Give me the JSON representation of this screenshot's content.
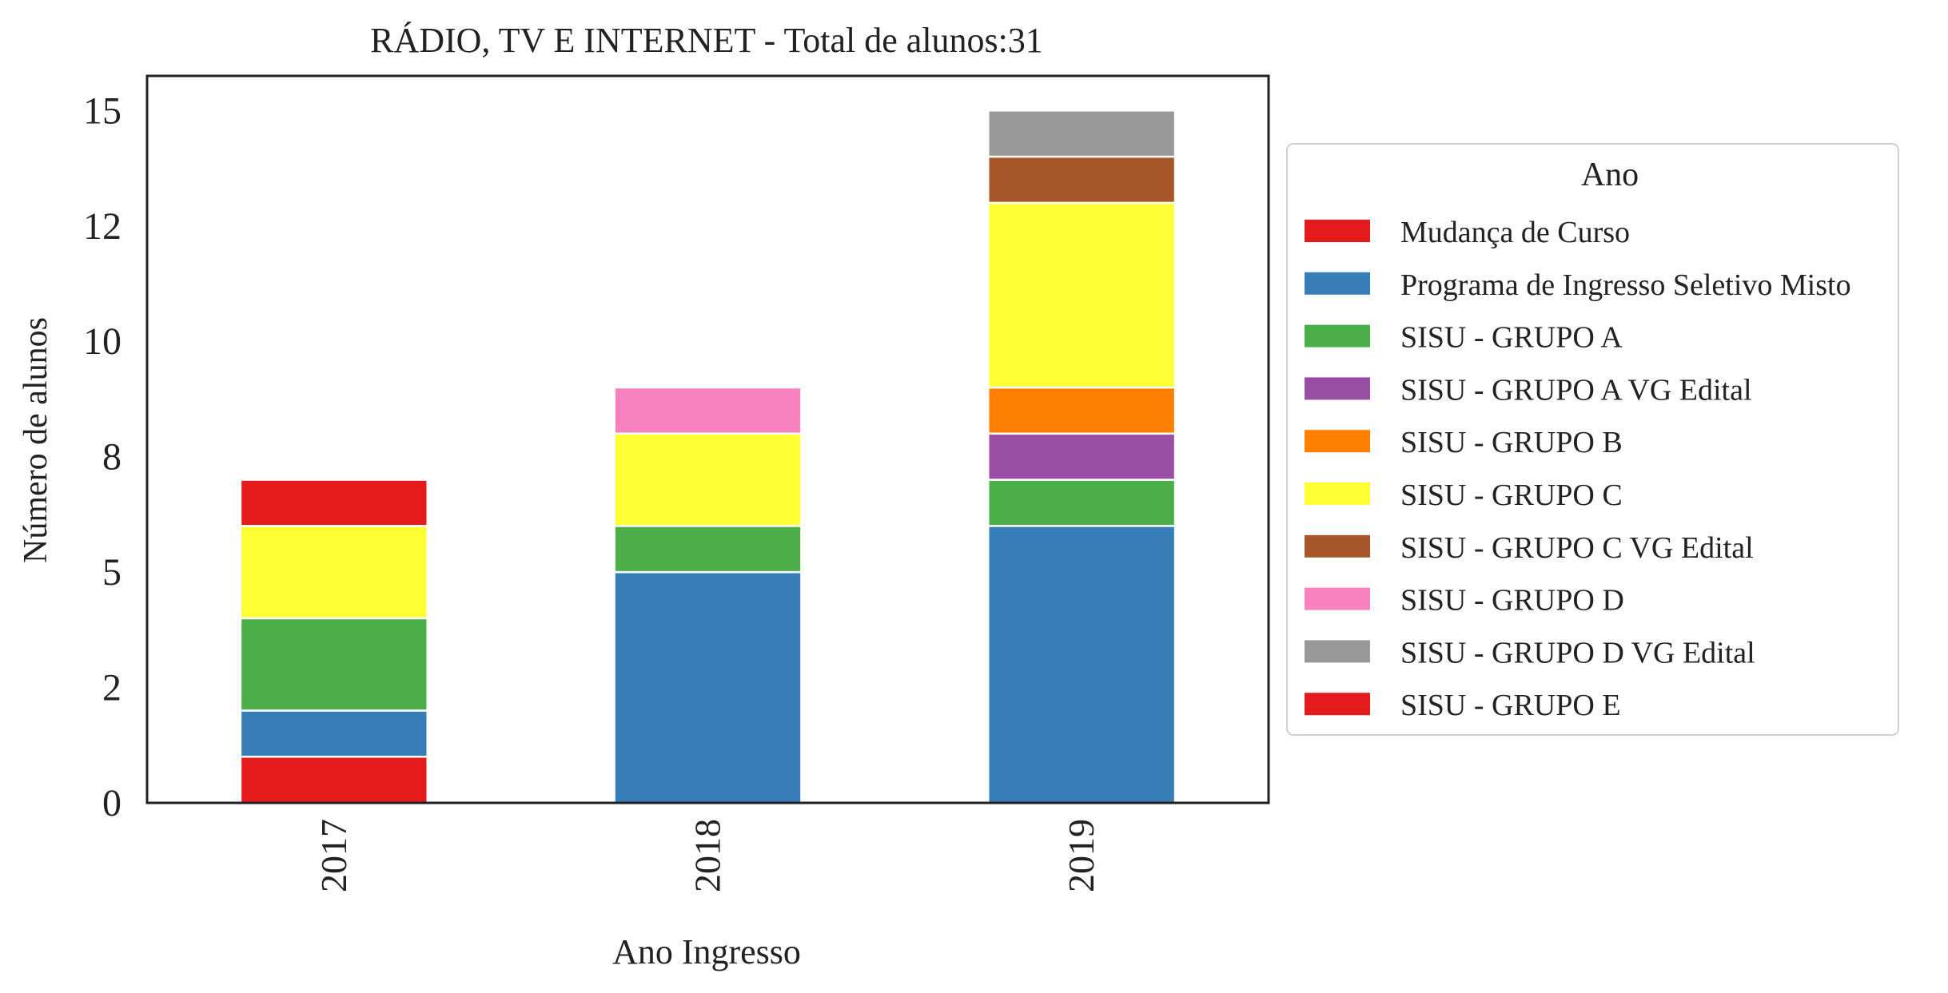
{
  "chart_data": {
    "type": "bar",
    "stacked": true,
    "title": "RÁDIO, TV E INTERNET - Total de alunos:31",
    "xlabel": "Ano Ingresso",
    "ylabel": "Número de alunos",
    "categories": [
      "2017",
      "2018",
      "2019"
    ],
    "ylim": [
      0,
      15.75
    ],
    "yticks": [
      0,
      2.5,
      5,
      7.5,
      10,
      12.5,
      15
    ],
    "ytick_labels": [
      "0",
      "2",
      "5",
      "8",
      "10",
      "12",
      "15"
    ],
    "grid": false,
    "legend": {
      "title": "Ano",
      "placement": "right"
    },
    "series": [
      {
        "name": "Mudança de Curso",
        "color": "#e41a1c",
        "values": [
          1,
          0,
          0
        ]
      },
      {
        "name": "Programa de Ingresso Seletivo Misto",
        "color": "#377eb8",
        "values": [
          1,
          5,
          6
        ]
      },
      {
        "name": "SISU - GRUPO A",
        "color": "#4daf4a",
        "values": [
          2,
          1,
          1
        ]
      },
      {
        "name": "SISU - GRUPO A VG Edital",
        "color": "#984ea3",
        "values": [
          0,
          0,
          1
        ]
      },
      {
        "name": "SISU - GRUPO B",
        "color": "#ff7f00",
        "values": [
          0,
          0,
          1
        ]
      },
      {
        "name": "SISU - GRUPO C",
        "color": "#ffff33",
        "values": [
          2,
          2,
          4
        ]
      },
      {
        "name": "SISU - GRUPO C VG Edital",
        "color": "#a65628",
        "values": [
          0,
          0,
          1
        ]
      },
      {
        "name": "SISU - GRUPO D",
        "color": "#f781bf",
        "values": [
          0,
          1,
          0
        ]
      },
      {
        "name": "SISU - GRUPO D VG Edital",
        "color": "#999999",
        "values": [
          0,
          0,
          1
        ]
      },
      {
        "name": "SISU - GRUPO E",
        "color": "#e41a1c",
        "values": [
          1,
          0,
          0
        ]
      }
    ]
  }
}
